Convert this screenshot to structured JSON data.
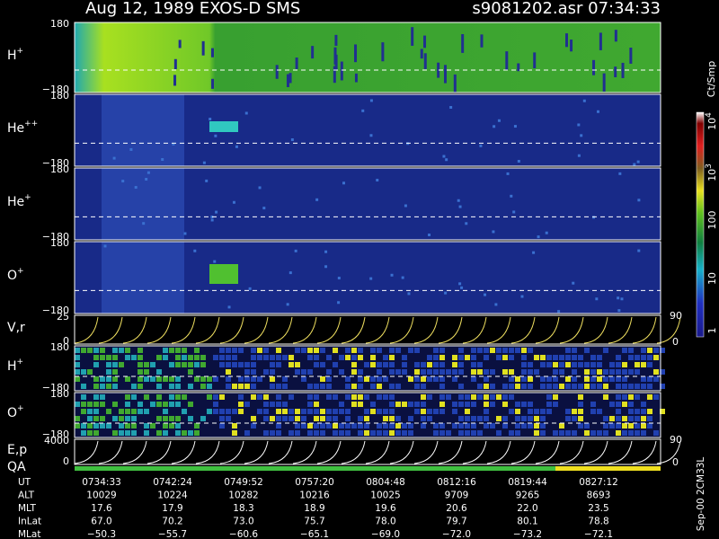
{
  "header": {
    "title": "Aug 12, 1989   EXOS-D SMS",
    "file": "s9081202.asr  07:34:33"
  },
  "panels": [
    {
      "label": "H",
      "sup": "+",
      "top": "180",
      "bottom": "−180"
    },
    {
      "label": "He",
      "sup": "++",
      "top": "180",
      "bottom": "−180"
    },
    {
      "label": "He",
      "sup": "+",
      "top": "180",
      "bottom": "−180"
    },
    {
      "label": "O",
      "sup": "+",
      "top": "180",
      "bottom": "−180"
    },
    {
      "label": "V,r",
      "top": "25",
      "bottom": "0",
      "right_top": "90",
      "right_bottom": "0"
    },
    {
      "label": "H",
      "sup": "+",
      "top": "180",
      "bottom": "−180"
    },
    {
      "label": "O",
      "sup": "+",
      "top": "180",
      "bottom": "−180"
    },
    {
      "label": "E,p",
      "top": "4000",
      "bottom": "0",
      "right_top": "90",
      "right_bottom": "0"
    }
  ],
  "qa_label": "QA",
  "colorbar": {
    "unit": "Ct/Smp",
    "labels": [
      {
        "base": "10",
        "exp": "4"
      },
      {
        "base": "10",
        "exp": "3"
      },
      {
        "base": "100"
      },
      {
        "base": "10"
      },
      {
        "base": "1"
      }
    ]
  },
  "footer": {
    "rows": [
      {
        "name": "UT",
        "values": [
          "0734:33",
          "0742:24",
          "0749:52",
          "0757:20",
          "0804:48",
          "0812:16",
          "0819:44",
          "0827:12"
        ]
      },
      {
        "name": "ALT",
        "values": [
          "10029",
          "10224",
          "10282",
          "10216",
          "10025",
          "9709",
          "9265",
          "8693"
        ]
      },
      {
        "name": "MLT",
        "values": [
          "17.6",
          "17.9",
          "18.3",
          "18.9",
          "19.6",
          "20.6",
          "22.0",
          "23.5"
        ]
      },
      {
        "name": "InLat",
        "values": [
          "67.0",
          "70.2",
          "73.0",
          "75.7",
          "78.0",
          "79.7",
          "80.1",
          "78.8"
        ]
      },
      {
        "name": "MLat",
        "values": [
          "−50.3",
          "−55.7",
          "−60.6",
          "−65.1",
          "−69.0",
          "−72.0",
          "−73.2",
          "−72.1"
        ]
      }
    ],
    "stamp": "Sep-00 2CM33L"
  }
}
